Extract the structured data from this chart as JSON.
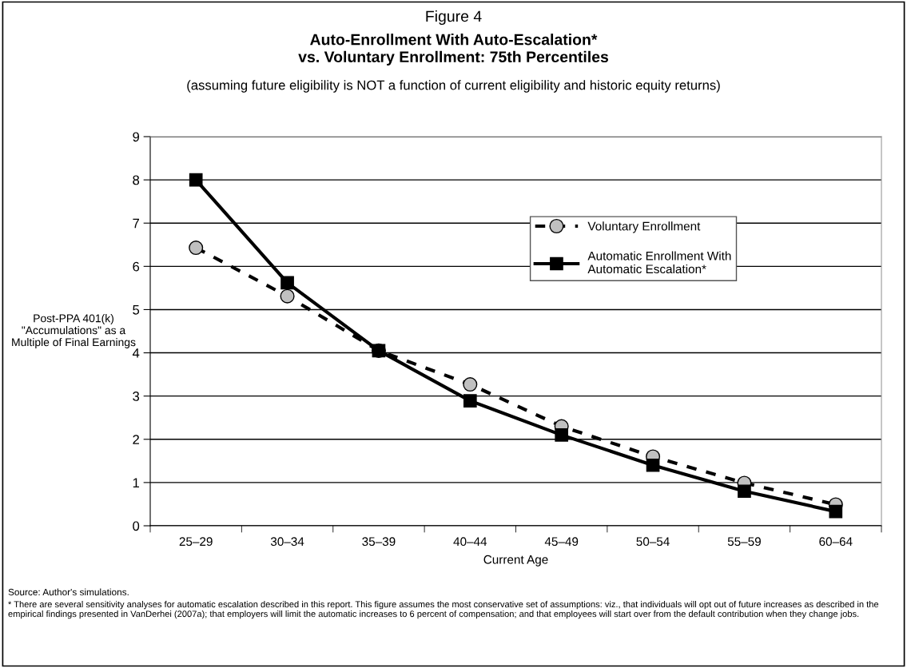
{
  "chart_data": {
    "type": "line",
    "title": "Figure 4",
    "subtitle": "Auto-Enrollment With Auto-Escalation*\nvs. Voluntary Enrollment: 75th Percentiles",
    "annotations": [
      "(assuming future eligibility is NOT a function of current eligibility and historic equity returns)",
      "Source: Author's simulations.",
      "* There are several sensitivity analyses for automatic escalation described in this report. This figure assumes the most conservative set of assumptions: viz., that individuals will opt out of future increases as described in the empirical findings presented in VanDerhei (2007a); that employers will limit the automatic increases to 6 percent of compensation; and that employees will start over from the default contribution when they change jobs."
    ],
    "xlabel": "Current Age",
    "ylabel": "Post-PPA 401(k)\n\"Accumulations\" as a\nMultiple of Final Earnings",
    "categories": [
      "25–29",
      "30–34",
      "35–39",
      "40–44",
      "45–49",
      "50–54",
      "55–59",
      "60–64"
    ],
    "series": [
      {
        "name": "Voluntary Enrollment",
        "color": "#c0c0c0",
        "values": [
          6.43,
          5.31,
          4.05,
          3.27,
          2.3,
          1.6,
          0.99,
          0.49
        ],
        "marker": "circle",
        "line_style": "dashed"
      },
      {
        "name": "Automatic Enrollment With Automatic Escalation*",
        "color": "#000000",
        "values": [
          8.0,
          5.62,
          4.05,
          2.89,
          2.1,
          1.4,
          0.8,
          0.33
        ],
        "marker": "square",
        "line_style": "solid"
      }
    ],
    "ylim": [
      0,
      9
    ],
    "yticks": [
      0,
      1,
      2,
      3,
      4,
      5,
      6,
      7,
      8,
      9
    ],
    "grid": "y",
    "legend": "top right"
  }
}
